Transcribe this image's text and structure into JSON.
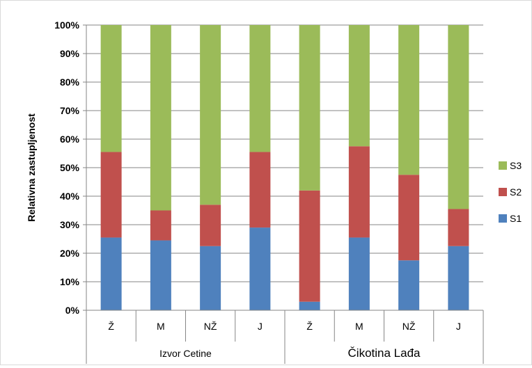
{
  "chart_data": {
    "type": "bar",
    "stacked": true,
    "percent_stacked": true,
    "categories": [
      "Ž",
      "M",
      "NŽ",
      "J",
      "Ž",
      "M",
      "NŽ",
      "J"
    ],
    "groups": [
      {
        "label": "Izvor Cetine",
        "categories": [
          "Ž",
          "M",
          "NŽ",
          "J"
        ]
      },
      {
        "label": "Čikotina Lađa",
        "categories": [
          "Ž",
          "M",
          "NŽ",
          "J"
        ]
      }
    ],
    "series": [
      {
        "name": "S1",
        "color": "#4F81BD",
        "values": [
          25.5,
          24.5,
          22.5,
          29,
          3,
          25.5,
          17.5,
          22.5
        ]
      },
      {
        "name": "S2",
        "color": "#C0504D",
        "values": [
          30,
          10.5,
          14.5,
          26.5,
          39,
          32,
          30,
          13
        ]
      },
      {
        "name": "S3",
        "color": "#9BBB59",
        "values": [
          44.5,
          65,
          63,
          44.5,
          58,
          42.5,
          52.5,
          64.5
        ]
      }
    ],
    "ylabel": "Relativna zastupljenost",
    "xlabel": "",
    "ylim": [
      0,
      100
    ],
    "yticks": [
      "0%",
      "10%",
      "20%",
      "30%",
      "40%",
      "50%",
      "60%",
      "70%",
      "80%",
      "90%",
      "100%"
    ],
    "grid": true,
    "legend": "right"
  }
}
